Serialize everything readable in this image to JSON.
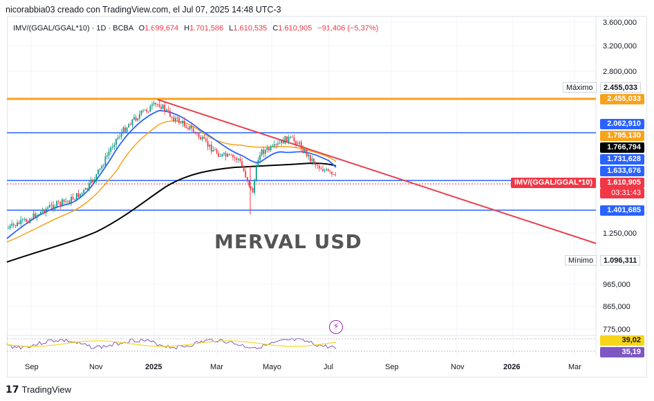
{
  "header": {
    "text": "nicorabbia03 creado con TradingView.com, el Jul 07, 2025 14:48 UTC-3"
  },
  "legend": {
    "symbol": "IMV/(GGAL/GGAL*10) · 1D · BCBA",
    "o_label": "O",
    "o_value": "1.699,674",
    "h_label": "H",
    "h_value": "1.701,586",
    "l_label": "L",
    "l_value": "1.610,535",
    "c_label": "C",
    "c_value": "1.610,905",
    "change": "−91,406 (−5,37%)"
  },
  "watermark": "MERVAL USD",
  "price_axis": [
    "3.600,000",
    "3.200,000",
    "2.800,000",
    "1.250,000",
    "965,000",
    "865,000",
    "775,000"
  ],
  "tags": {
    "maximo_label": "Máximo",
    "maximo_value": "2.455,033",
    "orange_level": "2.455,033",
    "blue_top": "2.062,910",
    "orange_ma": "1.795,130",
    "black_ma": "1.766,794",
    "blue_ma": "1.731,628",
    "blue_ma2": "1.633,676",
    "symbol_tag": "IMV/(GGAL/GGAL*10)",
    "last_price": "1.610,905",
    "countdown": "03:31:43",
    "blue_bottom": "1.401,685",
    "minimo_label": "Mínimo",
    "minimo_value": "1.096,311",
    "rsi1": "39,02",
    "rsi2": "35,19"
  },
  "time_axis": [
    {
      "label": "Sep",
      "bold": false
    },
    {
      "label": "Nov",
      "bold": false
    },
    {
      "label": "2025",
      "bold": true
    },
    {
      "label": "Mar",
      "bold": false
    },
    {
      "label": "Mayo",
      "bold": false
    },
    {
      "label": "Jul",
      "bold": false
    },
    {
      "label": "Sep",
      "bold": false
    },
    {
      "label": "Nov",
      "bold": false
    },
    {
      "label": "2026",
      "bold": true
    },
    {
      "label": "Mar",
      "bold": false
    }
  ],
  "footer": {
    "brand": "TradingView",
    "logo": "tradingview-logo-icon"
  },
  "colors": {
    "orange": "#f7a21b",
    "blue": "#2962ff",
    "red": "#f23645",
    "black": "#000000",
    "candle_up": "#089981",
    "candle_down": "#f23645",
    "trend": "#e8414f",
    "rsi": "#7e57c2"
  }
}
